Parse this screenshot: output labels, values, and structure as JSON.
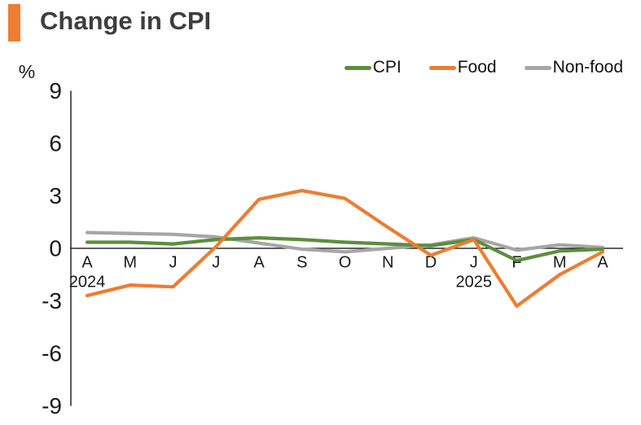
{
  "header": {
    "title": "Change in CPI",
    "accent_color": "#ED7D31"
  },
  "chart_data": {
    "type": "line",
    "title": "Change in CPI",
    "ylabel": "%",
    "xlabel": "",
    "ylim": [
      -9,
      9
    ],
    "yticks": [
      9,
      6,
      3,
      0,
      -3,
      -6,
      -9
    ],
    "grid": false,
    "legend_position": "top-right",
    "categories": [
      "A",
      "M",
      "J",
      "J",
      "A",
      "S",
      "O",
      "N",
      "D",
      "J",
      "F",
      "M",
      "A"
    ],
    "year_labels": [
      {
        "index": 0,
        "label": "2024"
      },
      {
        "index": 9,
        "label": "2025"
      }
    ],
    "series": [
      {
        "name": "CPI",
        "color": "#5B8F3A",
        "values": [
          0.35,
          0.35,
          0.25,
          0.5,
          0.6,
          0.5,
          0.35,
          0.25,
          0.15,
          0.5,
          -0.7,
          -0.15,
          -0.05
        ]
      },
      {
        "name": "Food",
        "color": "#ED7D31",
        "values": [
          -2.7,
          -2.1,
          -2.2,
          0.1,
          2.8,
          3.3,
          2.85,
          1.2,
          -0.4,
          0.5,
          -3.3,
          -1.5,
          -0.2
        ]
      },
      {
        "name": "Non-food",
        "color": "#A6A6A6",
        "values": [
          0.9,
          0.85,
          0.8,
          0.65,
          0.3,
          -0.05,
          -0.2,
          0.0,
          0.2,
          0.6,
          -0.1,
          0.2,
          0.05
        ]
      }
    ],
    "axis_color": "#000000"
  }
}
